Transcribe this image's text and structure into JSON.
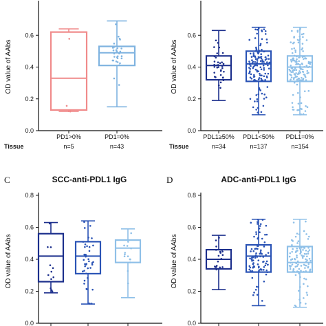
{
  "chart_data": [
    {
      "type": "box",
      "panel_label": "",
      "title": "",
      "ylabel": "OD value of AAbs",
      "ylim": [
        0,
        0.8
      ],
      "yticks": [
        "0.0",
        "0.2",
        "0.4",
        "0.6"
      ],
      "group_label": "Tissue",
      "categories": [
        "PD1>0%",
        "PD1=0%"
      ],
      "counts": [
        "n=5",
        "n=43"
      ],
      "colors": [
        "#f08a8a",
        "#7fb3e0"
      ],
      "boxes": [
        {
          "min": 0.12,
          "q1": 0.13,
          "median": 0.33,
          "q3": 0.62,
          "max": 0.64
        },
        {
          "min": 0.15,
          "q1": 0.41,
          "median": 0.49,
          "q3": 0.53,
          "max": 0.69
        }
      ],
      "points_shown": [
        3,
        30
      ]
    },
    {
      "type": "box",
      "panel_label": "",
      "title": "",
      "ylabel": "OD value of AAbs",
      "ylim": [
        0,
        0.8
      ],
      "yticks": [
        "0.0",
        "0.2",
        "0.4",
        "0.6"
      ],
      "group_label": "Tissue",
      "categories": [
        "PDL1≥50%",
        "PDL1<50%",
        "PDL1=0%"
      ],
      "counts": [
        "n=34",
        "n=137",
        "n=154"
      ],
      "colors": [
        "#1c2f8c",
        "#2a53b5",
        "#8fc0e8"
      ],
      "boxes": [
        {
          "min": 0.19,
          "q1": 0.32,
          "median": 0.41,
          "q3": 0.47,
          "max": 0.63
        },
        {
          "min": 0.1,
          "q1": 0.31,
          "median": 0.42,
          "q3": 0.5,
          "max": 0.65
        },
        {
          "min": 0.1,
          "q1": 0.31,
          "median": 0.4,
          "q3": 0.47,
          "max": 0.65
        }
      ],
      "points_shown": [
        34,
        137,
        154
      ]
    },
    {
      "type": "box",
      "panel_label": "C",
      "title": "SCC-anti-PDL1 IgG",
      "ylabel": "OD value of AAbs",
      "ylim": [
        0,
        0.8
      ],
      "yticks": [
        "0.0",
        "0.2",
        "0.4",
        "0.6",
        "0.8"
      ],
      "colors": [
        "#1c2f8c",
        "#2a53b5",
        "#8fc0e8"
      ],
      "boxes": [
        {
          "min": 0.19,
          "q1": 0.26,
          "median": 0.42,
          "q3": 0.56,
          "max": 0.63
        },
        {
          "min": 0.12,
          "q1": 0.31,
          "median": 0.42,
          "q3": 0.51,
          "max": 0.64
        },
        {
          "min": 0.16,
          "q1": 0.38,
          "median": 0.47,
          "q3": 0.52,
          "max": 0.59
        }
      ],
      "points_shown": [
        12,
        40,
        14
      ]
    },
    {
      "type": "box",
      "panel_label": "D",
      "title": "ADC-anti-PDL1 IgG",
      "ylabel": "OD value of AAbs",
      "ylim": [
        0,
        0.8
      ],
      "yticks": [
        "0.0",
        "0.2",
        "0.4",
        "0.6",
        "0.8"
      ],
      "colors": [
        "#1c2f8c",
        "#2a53b5",
        "#8fc0e8"
      ],
      "boxes": [
        {
          "min": 0.21,
          "q1": 0.34,
          "median": 0.4,
          "q3": 0.46,
          "max": 0.55
        },
        {
          "min": 0.11,
          "q1": 0.32,
          "median": 0.42,
          "q3": 0.49,
          "max": 0.65
        },
        {
          "min": 0.1,
          "q1": 0.32,
          "median": 0.38,
          "q3": 0.48,
          "max": 0.65
        }
      ],
      "points_shown": [
        20,
        90,
        110
      ]
    }
  ]
}
